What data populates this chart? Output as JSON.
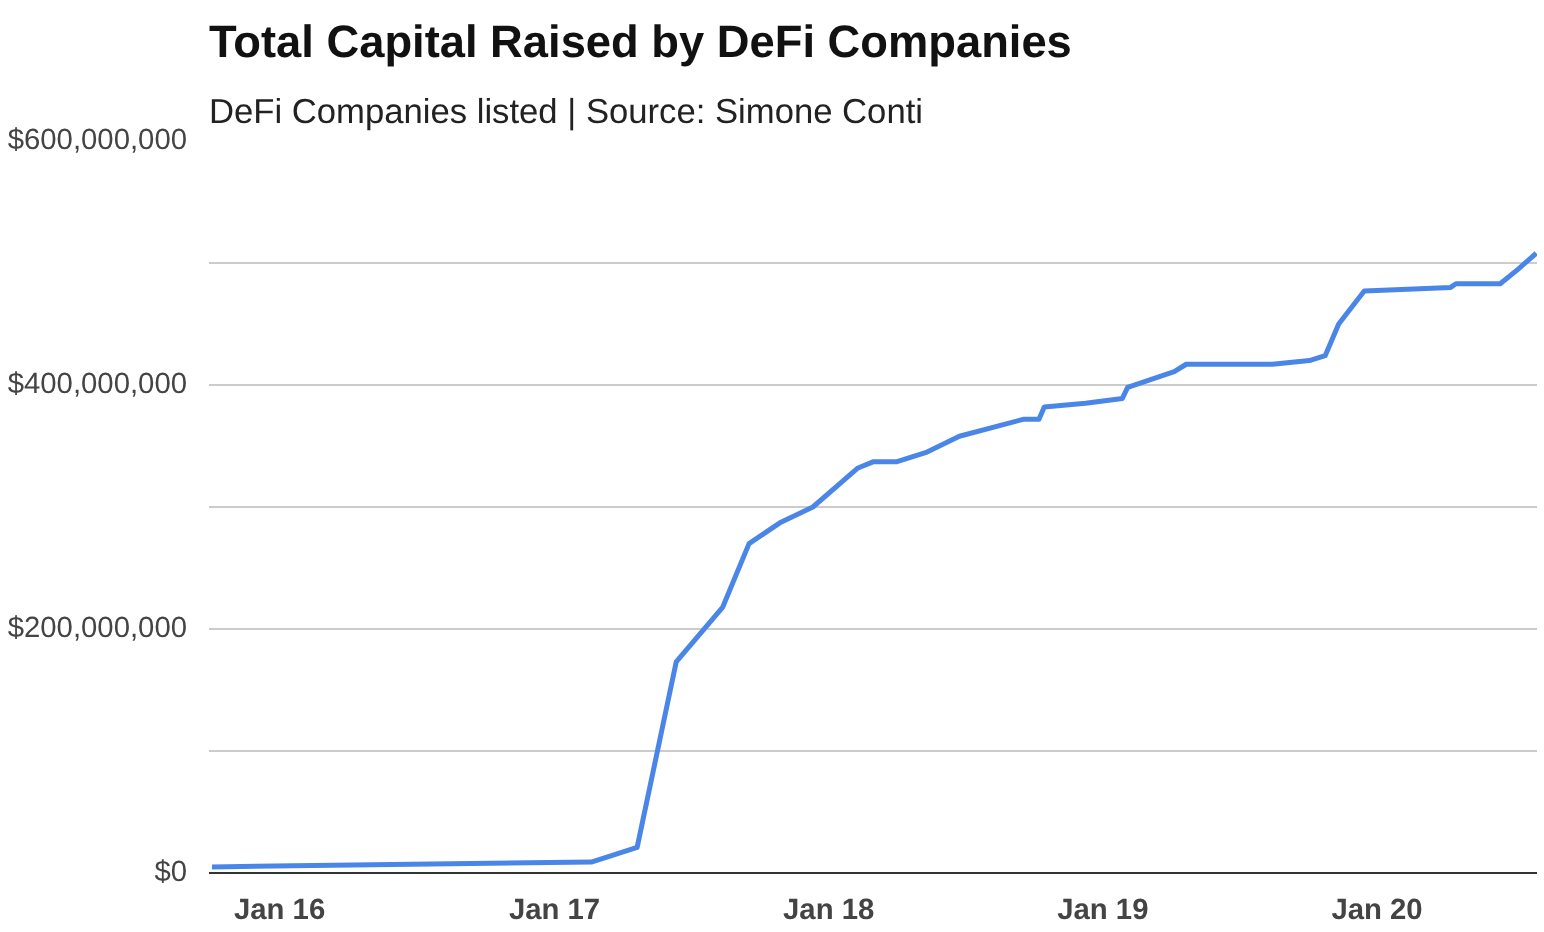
{
  "chart_data": {
    "type": "line",
    "title": "Total Capital Raised by DeFi Companies",
    "subtitle": "DeFi Companies listed | Source: Simone Conti",
    "x": [
      "2015-10-03",
      "2017-02-19",
      "2017-04-21",
      "2017-06-12",
      "2017-08-13",
      "2017-09-17",
      "2017-10-28",
      "2017-12-11",
      "2018-02-09",
      "2018-03-01",
      "2018-04-01",
      "2018-05-12",
      "2018-06-24",
      "2018-09-18",
      "2018-10-08",
      "2018-10-15",
      "2018-12-09",
      "2019-01-27",
      "2019-02-03",
      "2019-04-06",
      "2019-04-22",
      "2019-08-15",
      "2019-10-03",
      "2019-10-24",
      "2019-11-11",
      "2019-12-15",
      "2020-04-08",
      "2020-04-15",
      "2020-06-13",
      "2020-07-07",
      "2020-07-31"
    ],
    "series": [
      {
        "color": "#4a86e8",
        "values": [
          5000000,
          9000000,
          21000000,
          173000000,
          218000000,
          270000000,
          287000000,
          300000000,
          332000000,
          337000000,
          337000000,
          345000000,
          358000000,
          372000000,
          372000000,
          382000000,
          385000000,
          389000000,
          398000000,
          411000000,
          417000000,
          417000000,
          420000000,
          424000000,
          450000000,
          477000000,
          480000000,
          483000000,
          483000000,
          495000000,
          508000000
        ]
      }
    ],
    "xlim": [
      "2015-09-29",
      "2020-08-01"
    ],
    "xticks": [
      {
        "value": "2016-01-01",
        "label": "Jan 16"
      },
      {
        "value": "2017-01-01",
        "label": "Jan 17"
      },
      {
        "value": "2018-01-01",
        "label": "Jan 18"
      },
      {
        "value": "2019-01-01",
        "label": "Jan 19"
      },
      {
        "value": "2020-01-01",
        "label": "Jan 20"
      }
    ],
    "ylim": [
      0,
      600000000
    ],
    "yticks": [
      {
        "value": 0,
        "label": "$0"
      },
      {
        "value": 100000000,
        "label": null
      },
      {
        "value": 200000000,
        "label": "$200,000,000"
      },
      {
        "value": 300000000,
        "label": null
      },
      {
        "value": 400000000,
        "label": "$400,000,000"
      },
      {
        "value": 500000000,
        "label": null
      },
      {
        "value": 600000000,
        "label": "$600,000,000"
      }
    ],
    "grid": "y",
    "marker": "none",
    "line_style": "solid"
  }
}
